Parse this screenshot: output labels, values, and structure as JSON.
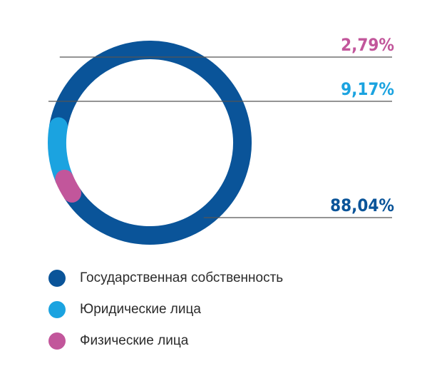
{
  "chart_data": {
    "type": "pie",
    "variant": "donut",
    "title": "",
    "series": [
      {
        "name": "Государственная собственность",
        "value": 88.04,
        "label": "88,04%",
        "color": "#0a5499"
      },
      {
        "name": "Юридические лица",
        "value": 9.17,
        "label": "9,17%",
        "color": "#1ba3e0"
      },
      {
        "name": "Физические лица",
        "value": 2.79,
        "label": "2,79%",
        "color": "#c2569b"
      }
    ],
    "legend_position": "bottom-left"
  }
}
